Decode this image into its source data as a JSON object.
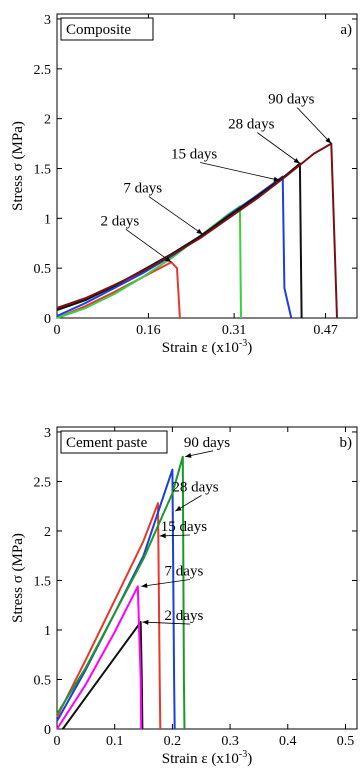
{
  "chart_data": [
    {
      "type": "line",
      "title": "Composite",
      "panel_label": "a)",
      "xlabel": "Strain ε (x10",
      "xlabel_exp": "-3",
      "xlabel_close": ")",
      "ylabel": "Stress σ (MPa)",
      "xlim": [
        0,
        0.525
      ],
      "ylim": [
        0,
        3.05
      ],
      "xticks": [
        0,
        0.16,
        0.31,
        0.47
      ],
      "xtick_labels": [
        "0",
        "0.16",
        "0.31",
        "0.47"
      ],
      "yticks": [
        0,
        0.5,
        1,
        1.5,
        2,
        2.5,
        3
      ],
      "ytick_labels": [
        "0",
        "0.5",
        "1",
        "1.5",
        "2",
        "2.5",
        "3"
      ],
      "series": [
        {
          "name": "2 days",
          "color": "#e8382b",
          "x": [
            0,
            0.05,
            0.1,
            0.15,
            0.19,
            0.2,
            0.21,
            0.215
          ],
          "y": [
            0,
            0.12,
            0.26,
            0.41,
            0.53,
            0.56,
            0.5,
            0
          ]
        },
        {
          "name": "7 days",
          "color": "#3ad13a",
          "x": [
            0,
            0.05,
            0.1,
            0.15,
            0.2,
            0.25,
            0.3,
            0.32,
            0.322
          ],
          "y": [
            0,
            0.1,
            0.24,
            0.41,
            0.6,
            0.82,
            1.04,
            1.12,
            0
          ]
        },
        {
          "name": "15 days",
          "color": "#1a3fe0",
          "x": [
            0,
            0.05,
            0.1,
            0.15,
            0.2,
            0.25,
            0.3,
            0.35,
            0.395,
            0.398,
            0.41
          ],
          "y": [
            0.02,
            0.15,
            0.3,
            0.45,
            0.62,
            0.81,
            1.03,
            1.23,
            1.42,
            0.3,
            0
          ]
        },
        {
          "name": "28 days",
          "color": "#111111",
          "x": [
            0,
            0.05,
            0.1,
            0.15,
            0.2,
            0.25,
            0.3,
            0.35,
            0.4,
            0.425,
            0.428
          ],
          "y": [
            0.08,
            0.18,
            0.32,
            0.48,
            0.64,
            0.82,
            1.02,
            1.22,
            1.43,
            1.55,
            0
          ]
        },
        {
          "name": "90 days",
          "color": "#7a1010",
          "x": [
            0,
            0.05,
            0.1,
            0.15,
            0.2,
            0.25,
            0.3,
            0.35,
            0.4,
            0.45,
            0.48,
            0.49
          ],
          "y": [
            0.1,
            0.2,
            0.33,
            0.47,
            0.63,
            0.8,
            1.0,
            1.2,
            1.42,
            1.65,
            1.75,
            0
          ]
        }
      ],
      "annotations": [
        {
          "text": "2 days",
          "x": 0.11,
          "y": 0.93,
          "to_x": 0.2,
          "to_y": 0.56
        },
        {
          "text": "7 days",
          "x": 0.15,
          "y": 1.26,
          "to_x": 0.255,
          "to_y": 0.84
        },
        {
          "text": "15 days",
          "x": 0.24,
          "y": 1.6,
          "to_x": 0.39,
          "to_y": 1.38
        },
        {
          "text": "28 days",
          "x": 0.34,
          "y": 1.9,
          "to_x": 0.425,
          "to_y": 1.55
        },
        {
          "text": "90 days",
          "x": 0.41,
          "y": 2.15,
          "to_x": 0.48,
          "to_y": 1.75
        }
      ]
    },
    {
      "type": "line",
      "title": "Cement paste",
      "panel_label": "b)",
      "xlabel": "Strain ε (x10",
      "xlabel_exp": "-3",
      "xlabel_close": ")",
      "ylabel": "Stress σ (MPa)",
      "xlim": [
        0,
        0.52
      ],
      "ylim": [
        0,
        3.05
      ],
      "xticks": [
        0,
        0.1,
        0.2,
        0.3,
        0.4,
        0.5
      ],
      "xtick_labels": [
        "0",
        "0.1",
        "0.2",
        "0.3",
        "0.4",
        "0.5"
      ],
      "yticks": [
        0,
        0.5,
        1,
        1.5,
        2,
        2.5,
        3
      ],
      "ytick_labels": [
        "0",
        "0.5",
        "1",
        "1.5",
        "2",
        "2.5",
        "3"
      ],
      "series": [
        {
          "name": "2 days",
          "color": "#111111",
          "x": [
            0.01,
            0.05,
            0.1,
            0.145,
            0.147,
            0.148
          ],
          "y": [
            0,
            0.32,
            0.72,
            1.08,
            0.5,
            0
          ]
        },
        {
          "name": "7 days",
          "color": "#ff00ff",
          "x": [
            0,
            0.05,
            0.1,
            0.14,
            0.145,
            0.146
          ],
          "y": [
            0,
            0.45,
            0.98,
            1.44,
            0.5,
            0
          ]
        },
        {
          "name": "15 days",
          "color": "#e8382b",
          "x": [
            0,
            0.05,
            0.1,
            0.15,
            0.175,
            0.178,
            0.179
          ],
          "y": [
            0.12,
            0.7,
            1.3,
            1.9,
            2.28,
            0.5,
            0
          ]
        },
        {
          "name": "28 days",
          "color": "#1a3fe0",
          "x": [
            0,
            0.05,
            0.1,
            0.15,
            0.2,
            0.203,
            0.204
          ],
          "y": [
            0.08,
            0.6,
            1.17,
            1.75,
            2.62,
            0.5,
            0
          ]
        },
        {
          "name": "90 days",
          "color": "#1a9a2a",
          "x": [
            0,
            0.05,
            0.1,
            0.15,
            0.2,
            0.218,
            0.22,
            0.221
          ],
          "y": [
            0.15,
            0.62,
            1.17,
            1.72,
            2.38,
            2.75,
            0.5,
            0
          ]
        }
      ],
      "annotations": [
        {
          "text": "2 days",
          "x": 0.22,
          "y": 1.1,
          "to_x": 0.148,
          "to_y": 1.08
        },
        {
          "text": "7 days",
          "x": 0.22,
          "y": 1.55,
          "to_x": 0.146,
          "to_y": 1.44
        },
        {
          "text": "15 days",
          "x": 0.22,
          "y": 2.0,
          "to_x": 0.178,
          "to_y": 1.95
        },
        {
          "text": "28 days",
          "x": 0.24,
          "y": 2.4,
          "to_x": 0.205,
          "to_y": 2.2
        },
        {
          "text": "90 days",
          "x": 0.26,
          "y": 2.85,
          "to_x": 0.222,
          "to_y": 2.75
        }
      ]
    }
  ]
}
